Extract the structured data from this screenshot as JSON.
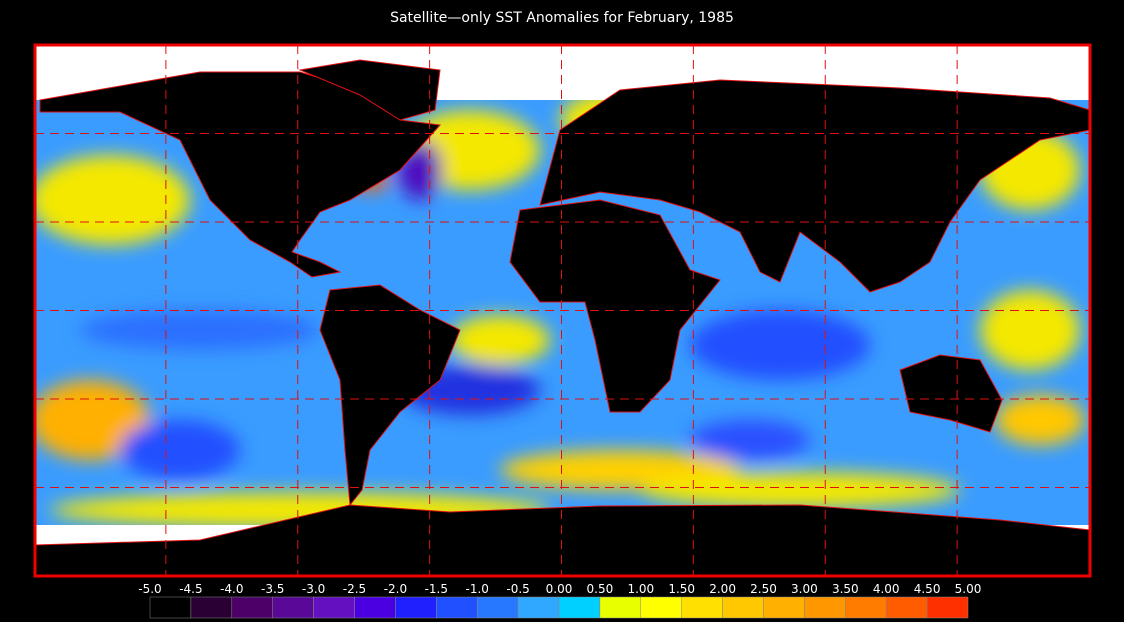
{
  "title": "Satellite—only SST Anomalies for February, 1985",
  "legend": {
    "labels": [
      "-5.0",
      "-4.5",
      "-4.0",
      "-3.5",
      "-3.0",
      "-2.5",
      "-2.0",
      "-1.5",
      "-1.0",
      "-0.5",
      "0.00",
      "0.50",
      "1.00",
      "1.50",
      "2.00",
      "2.50",
      "3.00",
      "3.50",
      "4.00",
      "4.50",
      "5.00"
    ],
    "colors": [
      "#000000",
      "#2a0034",
      "#4c0068",
      "#5a0898",
      "#6410c0",
      "#4a00e0",
      "#2020ff",
      "#2050ff",
      "#2878ff",
      "#30a8ff",
      "#00d0ff",
      "#e8ff00",
      "#ffff00",
      "#ffe000",
      "#ffc800",
      "#ffb000",
      "#ff9800",
      "#ff7c00",
      "#ff5c00",
      "#ff3000"
    ]
  }
}
